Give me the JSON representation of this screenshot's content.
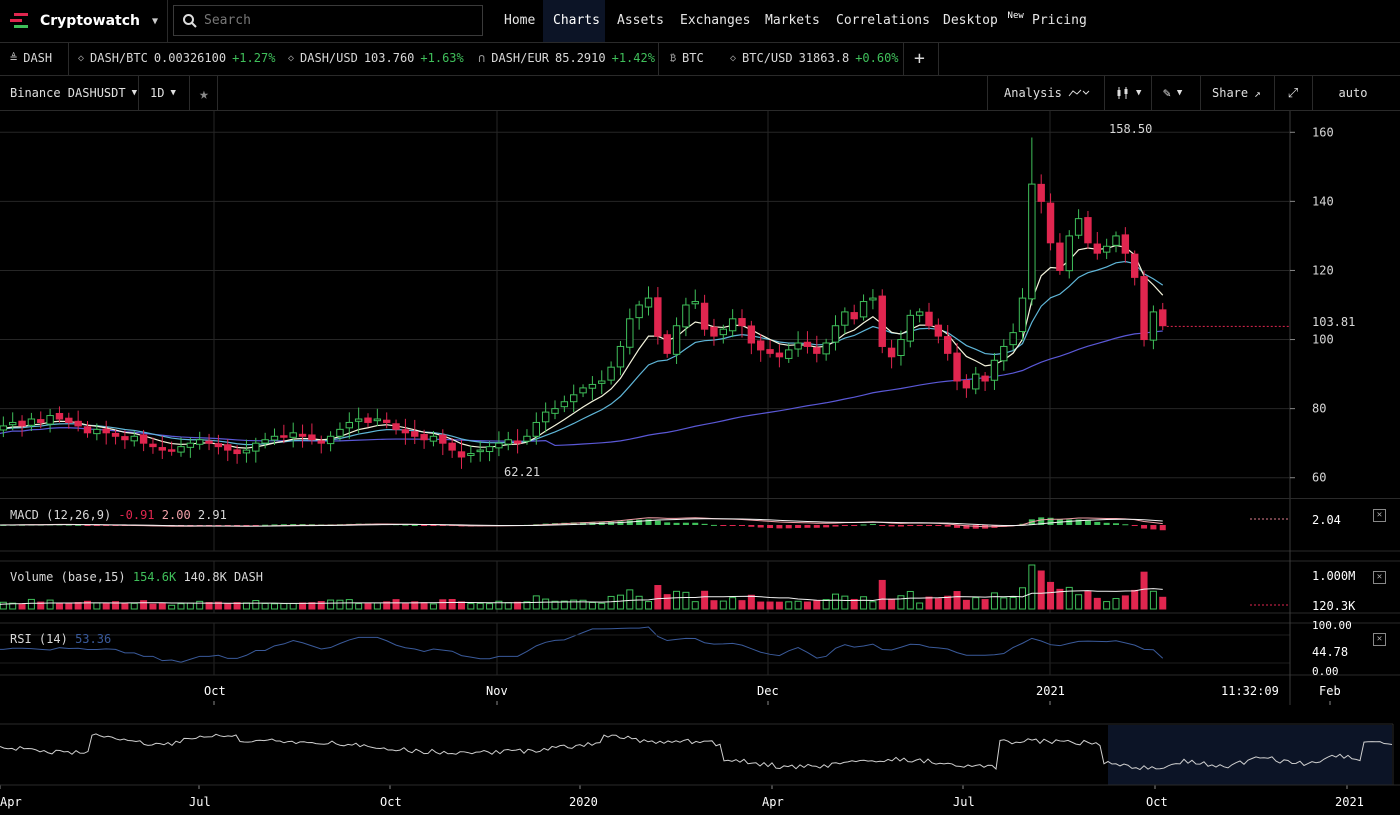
{
  "brand": {
    "name": "Cryptowatch"
  },
  "search": {
    "placeholder": "Search"
  },
  "nav": {
    "home": "Home",
    "charts": "Charts",
    "assets": "Assets",
    "exchanges": "Exchanges",
    "markets": "Markets",
    "correlations": "Correlations",
    "desktop": "Desktop",
    "desktop_badge": "New",
    "pricing": "Pricing"
  },
  "ticker": [
    {
      "symbol": "DASH",
      "price": "",
      "change": "",
      "icon": "dash-icon"
    },
    {
      "symbol": "DASH/BTC",
      "price": "0.00326100",
      "change": "+1.27%",
      "icon": "diamond-icon"
    },
    {
      "symbol": "DASH/USD",
      "price": "103.760",
      "change": "+1.63%",
      "icon": "diamond-icon"
    },
    {
      "symbol": "DASH/EUR",
      "price": "85.2910",
      "change": "+1.42%",
      "icon": "arch-icon"
    },
    {
      "symbol": "BTC",
      "price": "",
      "change": "",
      "icon": "bitcoin-icon"
    },
    {
      "symbol": "BTC/USD",
      "price": "31863.8",
      "change": "+0.60%",
      "icon": "diamond-icon"
    }
  ],
  "toolbar": {
    "market": "Binance DASHUSDT",
    "interval": "1D",
    "analysis": "Analysis",
    "share": "Share",
    "scale": "auto"
  },
  "price_axis": {
    "labels": [
      "160",
      "140",
      "120",
      "100",
      "80",
      "60"
    ],
    "high_label": "158.50",
    "low_label": "62.21",
    "last_price": "103.81"
  },
  "macd": {
    "label": "MACD",
    "params": "(12,26,9)",
    "v1": "-0.91",
    "v2": "2.00",
    "v3": "2.91",
    "axis_value": "2.04"
  },
  "volume": {
    "label": "Volume",
    "params": "(base,15)",
    "v1": "154.6K",
    "v2": "140.8K DASH",
    "axis_top": "1.000M",
    "axis_value": "120.3K"
  },
  "rsi": {
    "label": "RSI",
    "params": "(14)",
    "v1": "53.36",
    "axis_top": "100.00",
    "axis_value": "44.78",
    "axis_bottom": "0.00"
  },
  "time_axis": {
    "labels": [
      "Oct",
      "Nov",
      "Dec",
      "2021",
      "Feb"
    ],
    "clock": "11:32:09"
  },
  "overview_axis": {
    "labels": [
      "Apr",
      "Jul",
      "Oct",
      "2020",
      "Apr",
      "Jul",
      "Oct",
      "2021"
    ]
  },
  "colors": {
    "up": "#3fbf5a",
    "down": "#e0264f",
    "ema_fast": "#f4f4dc",
    "ema_mid": "#5fb6d8",
    "sma_slow": "#5a58d6",
    "accent_nav": "#0c1426"
  },
  "chart_data": {
    "type": "candlestick",
    "title": "Binance DASHUSDT",
    "interval": "1D",
    "ylim": [
      55,
      165
    ],
    "x_ticks": [
      "Oct",
      "Nov",
      "Dec",
      "2021",
      "Feb"
    ],
    "y_ticks": [
      60,
      80,
      100,
      120,
      140,
      160
    ],
    "annotations": {
      "high": 158.5,
      "low": 62.21,
      "last": 103.81
    },
    "closes": [
      74,
      75,
      76,
      75,
      77,
      76,
      78,
      77,
      76,
      75,
      73,
      74,
      73,
      72,
      71,
      72,
      70,
      69,
      68,
      68,
      69,
      70,
      71,
      70,
      69,
      68,
      67,
      68,
      70,
      71,
      72,
      72,
      73,
      72,
      71,
      70,
      72,
      74,
      76,
      77,
      76,
      77,
      76,
      74,
      73,
      72,
      71,
      72,
      70,
      68,
      66,
      67,
      68,
      69,
      70,
      71,
      70,
      72,
      76,
      79,
      80,
      82,
      84,
      86,
      87,
      88,
      92,
      98,
      106,
      110,
      112,
      101,
      96,
      104,
      110,
      111,
      103,
      101,
      103,
      106,
      104,
      99,
      97,
      96,
      95,
      97,
      99,
      98,
      96,
      99,
      104,
      108,
      106,
      111,
      112,
      98,
      95,
      100,
      107,
      108,
      104,
      101,
      96,
      88,
      86,
      90,
      88,
      94,
      98,
      102,
      112,
      145,
      140,
      128,
      120,
      130,
      135,
      128,
      125,
      127,
      130,
      125,
      118,
      100,
      108,
      104
    ],
    "ema_fast_last": 108.5,
    "ema_mid_last": 113.0,
    "sma_slow_last": 97.5
  }
}
